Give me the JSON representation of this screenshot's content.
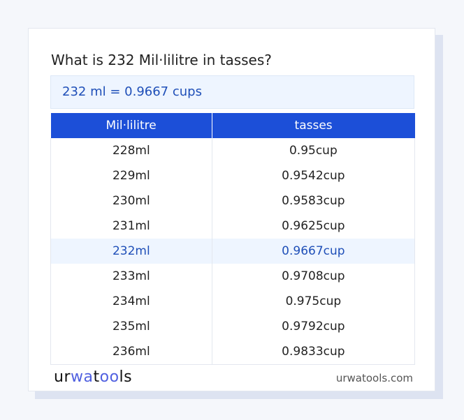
{
  "title": "What is 232 Mil·lilitre in tasses?",
  "result": "232 ml = 0.9667 cups",
  "table": {
    "headers": [
      "Mil·lilitre",
      "tasses"
    ],
    "rows": [
      [
        "228ml",
        "0.95cup"
      ],
      [
        "229ml",
        "0.9542cup"
      ],
      [
        "230ml",
        "0.9583cup"
      ],
      [
        "231ml",
        "0.9625cup"
      ],
      [
        "232ml",
        "0.9667cup"
      ],
      [
        "233ml",
        "0.9708cup"
      ],
      [
        "234ml",
        "0.975cup"
      ],
      [
        "235ml",
        "0.9792cup"
      ],
      [
        "236ml",
        "0.9833cup"
      ]
    ],
    "highlighted_row": 4
  },
  "footer": {
    "logo": "urwatools",
    "site": "urwatools.com"
  },
  "colors": {
    "accent": "#1c4fd8",
    "highlight_bg": "#eef5ff"
  }
}
